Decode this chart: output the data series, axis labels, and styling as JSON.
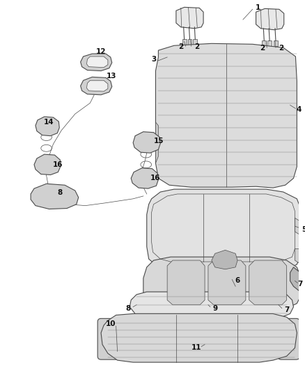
{
  "bg_color": "#ffffff",
  "line_color": "#4a4a4a",
  "fill_light": "#e8e8e8",
  "fill_mid": "#d0d0d0",
  "fill_dark": "#b8b8b8",
  "figsize": [
    4.38,
    5.33
  ],
  "dpi": 100
}
